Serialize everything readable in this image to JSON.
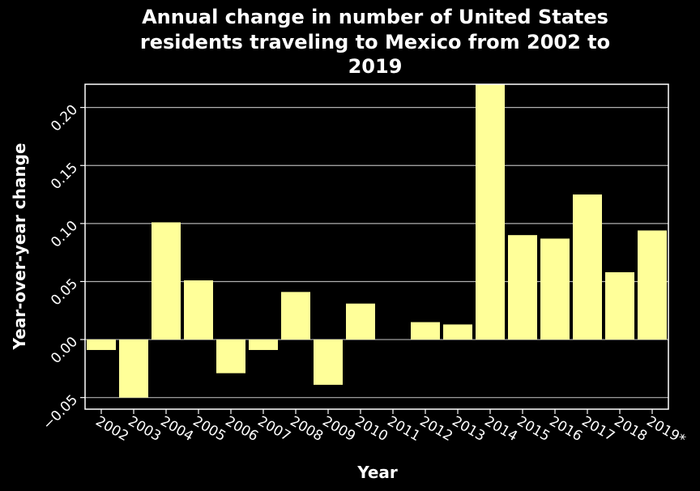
{
  "chart_data": {
    "type": "bar",
    "title_lines": [
      "Annual change in number of United States",
      "residents traveling to Mexico from 2002 to",
      "2019"
    ],
    "xlabel": "Year",
    "ylabel": "Year-over-year change",
    "categories": [
      "2002",
      "2003",
      "2004",
      "2005",
      "2006",
      "2007",
      "2008",
      "2009",
      "2010",
      "2011",
      "2012",
      "2013",
      "2014",
      "2015",
      "2016",
      "2017",
      "2018",
      "2019*"
    ],
    "values": [
      -0.009,
      -0.05,
      0.101,
      0.051,
      -0.029,
      -0.009,
      0.041,
      -0.039,
      0.031,
      0.0,
      0.015,
      0.013,
      0.22,
      0.09,
      0.087,
      0.125,
      0.058,
      0.094
    ],
    "yticks": [
      "−0.05",
      "0.00",
      "0.05",
      "0.10",
      "0.15",
      "0.20"
    ],
    "ytick_values": [
      -0.05,
      0.0,
      0.05,
      0.1,
      0.15,
      0.2
    ],
    "ylim": [
      -0.06,
      0.22
    ],
    "grid": true,
    "bar_color": "#ffff99",
    "background_color": "#000000",
    "axis_color": "#ffffff",
    "grid_color": "#b0b0b0"
  }
}
